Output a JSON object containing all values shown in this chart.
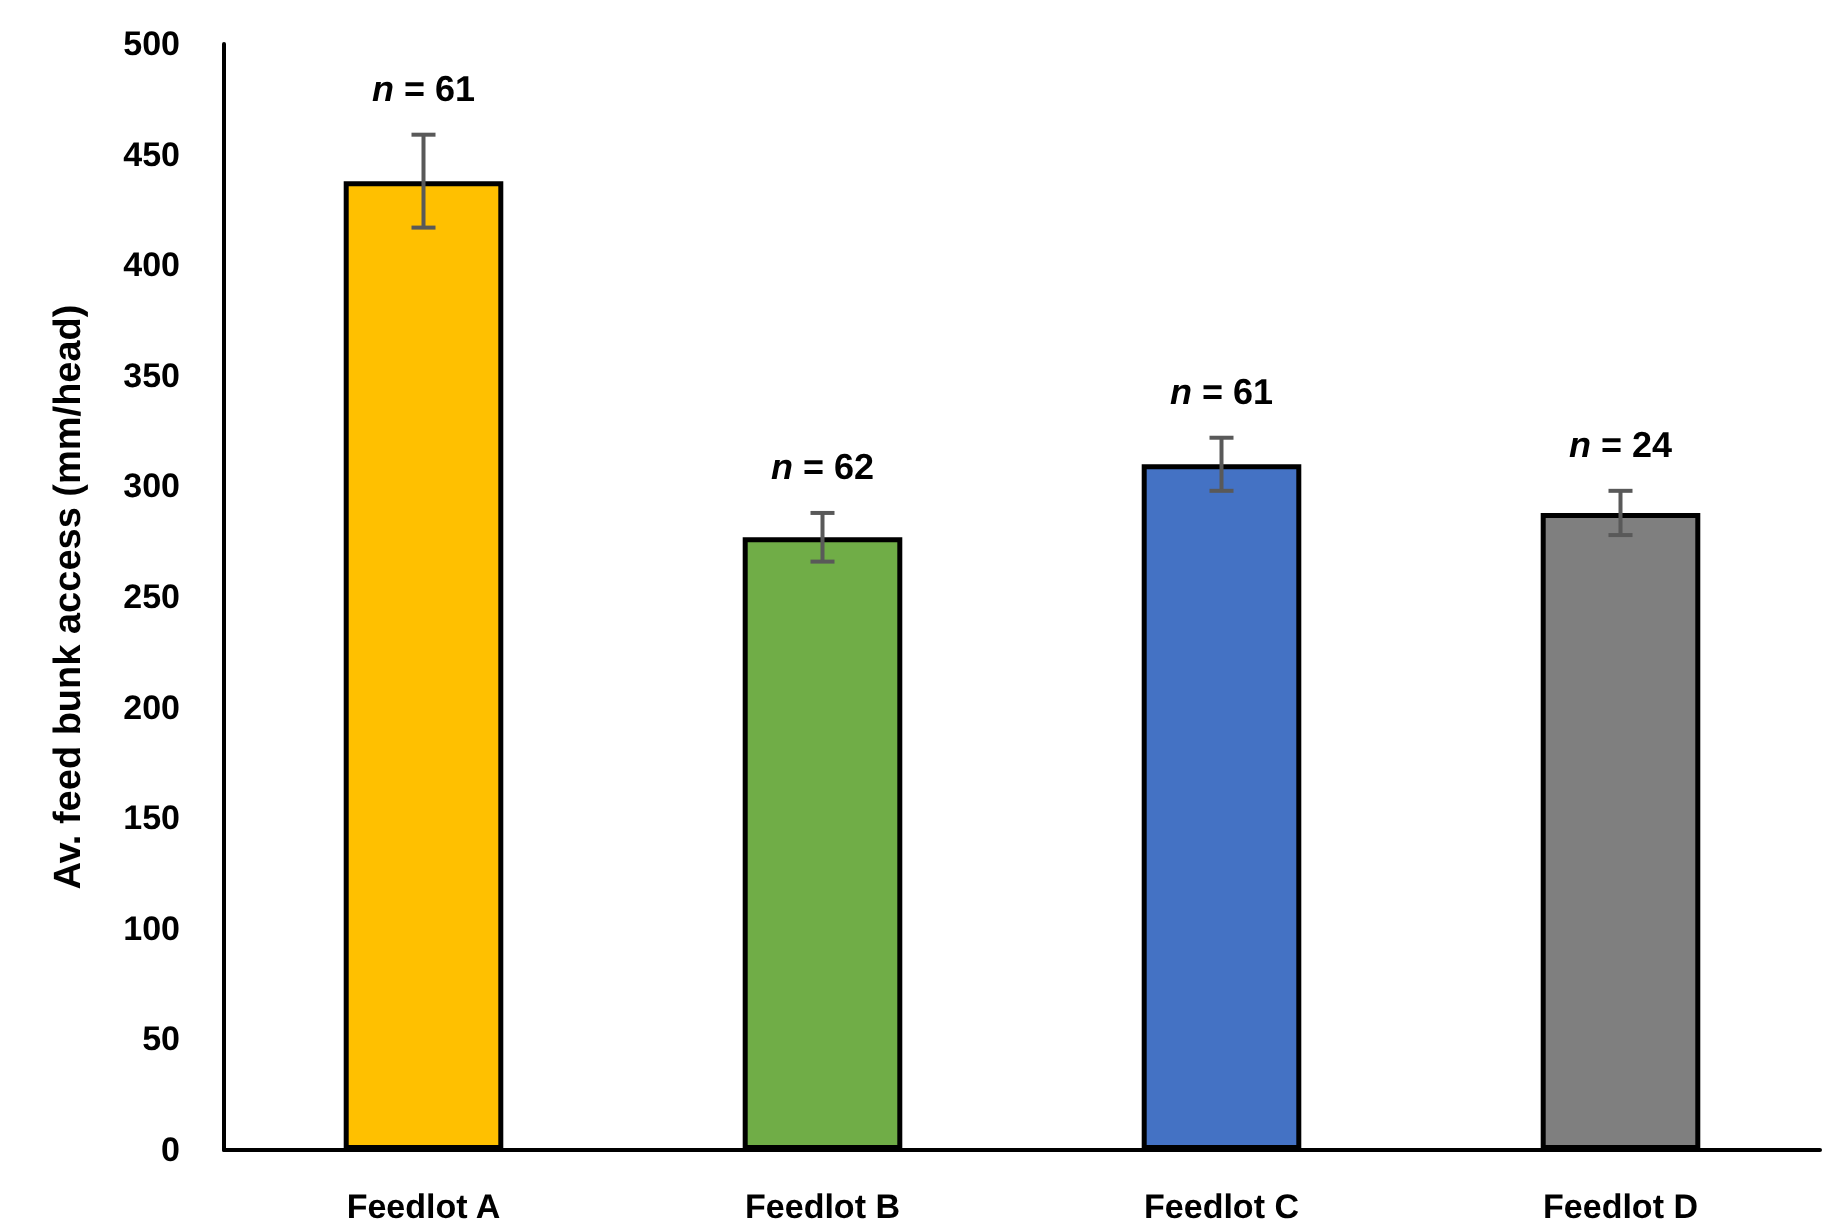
{
  "chart_data": {
    "type": "bar",
    "ylabel": "Av. feed bunk access (mm/head)",
    "categories": [
      "Feedlot A",
      "Feedlot B",
      "Feedlot C",
      "Feedlot D"
    ],
    "values": [
      438,
      277,
      310,
      288
    ],
    "colors": [
      "#ffc000",
      "#70ad47",
      "#4472c4",
      "#7f7f7f"
    ],
    "errors": [
      21,
      11,
      12,
      10
    ],
    "ylim": [
      0,
      500
    ],
    "yticks": [
      0,
      50,
      100,
      150,
      200,
      250,
      300,
      350,
      400,
      450,
      500
    ],
    "grid": false,
    "annotations": [
      {
        "text": "n = 61",
        "x": "Feedlot A",
        "y": 459
      },
      {
        "text": "n = 62",
        "x": "Feedlot B",
        "y": 288
      },
      {
        "text": "n = 61",
        "x": "Feedlot C",
        "y": 322
      },
      {
        "text": "n = 24",
        "x": "Feedlot D",
        "y": 298
      }
    ]
  }
}
